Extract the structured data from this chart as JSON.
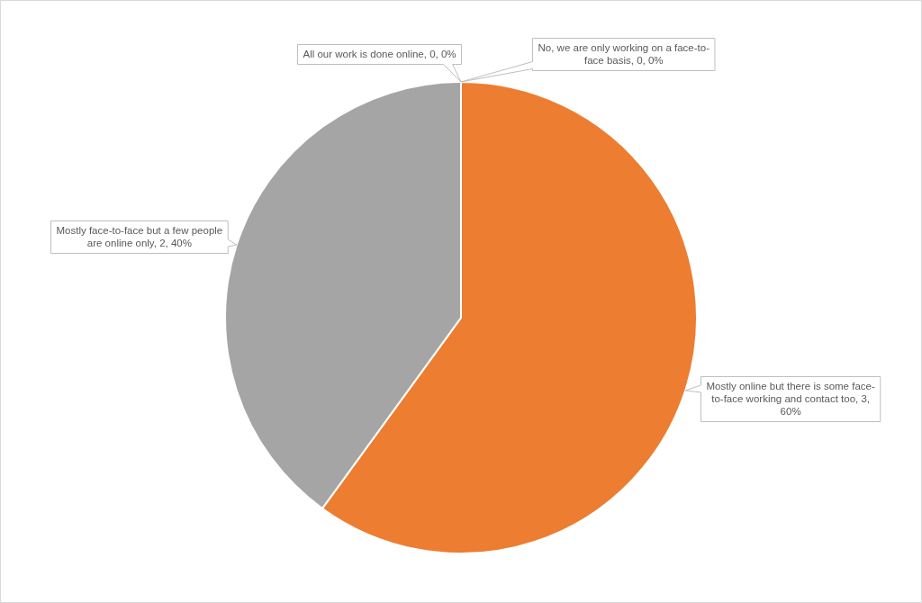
{
  "chart_data": {
    "type": "pie",
    "categories": [
      "No, we are only working on a face-to-face basis",
      "Mostly online but there is some face-to-face working and contact too",
      "Mostly face-to-face but a few people are online only",
      "All our work is done online"
    ],
    "values": [
      0,
      3,
      2,
      0
    ],
    "colors": [
      "#4472c4",
      "#ed7d31",
      "#a5a5a5",
      "#ffc000"
    ],
    "value_labels": [
      ", 0, 0%",
      ", 3, 60%",
      ", 2, 40%",
      ", 0, 0%"
    ]
  }
}
